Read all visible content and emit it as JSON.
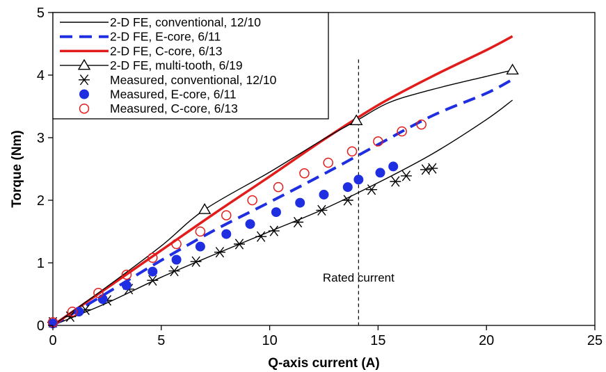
{
  "chart_data": {
    "type": "line",
    "title": "",
    "xlabel": "Q-axis current (A)",
    "ylabel": "Torque (Nm)",
    "xlim": [
      0,
      25
    ],
    "ylim": [
      0,
      5
    ],
    "x_ticks": [
      "0",
      "5",
      "10",
      "15",
      "20",
      "25"
    ],
    "y_ticks": [
      "0",
      "1",
      "2",
      "3",
      "4",
      "5"
    ],
    "grid": false,
    "legend_position": "top-left",
    "annotation": {
      "text": "Rated current",
      "x": 14.1
    },
    "series": [
      {
        "name": "2-D FE, conventional, 12/10",
        "kind": "line",
        "style": "solid",
        "marker": "none",
        "color": "#000000",
        "width": 1.4,
        "x": [
          0,
          2.5,
          5,
          7.5,
          10,
          12.5,
          15,
          17.5,
          20,
          21.2
        ],
        "y": [
          0,
          0.36,
          0.77,
          1.14,
          1.5,
          1.86,
          2.28,
          2.74,
          3.29,
          3.6
        ]
      },
      {
        "name": "2-D FE, E-core, 6/11",
        "kind": "line",
        "style": "dashed",
        "marker": "none",
        "color": "#1f2ee0",
        "width": 4,
        "x": [
          0,
          2.5,
          5,
          7.5,
          10,
          12.5,
          15,
          17.5,
          20,
          21.2
        ],
        "y": [
          0,
          0.52,
          1.04,
          1.53,
          1.97,
          2.42,
          2.89,
          3.35,
          3.71,
          3.93
        ]
      },
      {
        "name": "2-D FE, C-core, 6/13",
        "kind": "line",
        "style": "solid",
        "marker": "none",
        "color": "#e21b1b",
        "width": 3.5,
        "x": [
          0,
          2.5,
          5,
          7.5,
          10,
          12.5,
          15,
          17.5,
          20,
          21.2
        ],
        "y": [
          0,
          0.6,
          1.2,
          1.8,
          2.38,
          2.97,
          3.52,
          3.98,
          4.4,
          4.62
        ]
      },
      {
        "name": "2-D FE, multi-tooth, 6/19",
        "kind": "line",
        "style": "solid",
        "marker": "open-triangle",
        "color": "#000000",
        "width": 1.4,
        "x": [
          0,
          2.5,
          5,
          7,
          10,
          12.5,
          14,
          15.5,
          17.5,
          20,
          21.2
        ],
        "y": [
          0,
          0.62,
          1.27,
          1.85,
          2.45,
          2.98,
          3.27,
          3.56,
          3.77,
          3.98,
          4.08
        ],
        "marker_x": [
          7,
          14,
          21.2
        ],
        "marker_y": [
          1.85,
          3.27,
          4.08
        ]
      },
      {
        "name": "Measured, conventional, 12/10",
        "kind": "scatter",
        "marker": "asterisk",
        "color": "#000000",
        "x": [
          0,
          0.8,
          1.5,
          2.5,
          3.5,
          4.6,
          5.6,
          6.6,
          7.7,
          8.6,
          9.6,
          10.2,
          11.3,
          12.4,
          13.6,
          14.7,
          15.8,
          16.3,
          17.2,
          17.5
        ],
        "y": [
          0.05,
          0.14,
          0.25,
          0.4,
          0.58,
          0.72,
          0.87,
          1.02,
          1.17,
          1.3,
          1.42,
          1.51,
          1.65,
          1.84,
          2.0,
          2.17,
          2.3,
          2.39,
          2.49,
          2.51
        ]
      },
      {
        "name": "Measured, E-core, 6/11",
        "kind": "scatter",
        "marker": "filled-circle",
        "color": "#1f2ee0",
        "x": [
          0,
          1.2,
          2.3,
          3.4,
          4.6,
          5.7,
          6.8,
          8.0,
          9.1,
          10.3,
          11.4,
          12.5,
          13.6,
          14.1,
          15.1,
          15.7
        ],
        "y": [
          0.03,
          0.22,
          0.42,
          0.64,
          0.86,
          1.05,
          1.26,
          1.46,
          1.62,
          1.81,
          1.96,
          2.09,
          2.21,
          2.33,
          2.44,
          2.54
        ]
      },
      {
        "name": "Measured, C-core, 6/13",
        "kind": "scatter",
        "marker": "open-circle",
        "color": "#e21b1b",
        "x": [
          0,
          0.9,
          2.1,
          3.4,
          4.6,
          5.7,
          6.8,
          8.0,
          9.2,
          10.4,
          11.6,
          12.7,
          13.8,
          15.0,
          16.1,
          17.0
        ],
        "y": [
          0.05,
          0.22,
          0.52,
          0.81,
          1.08,
          1.3,
          1.5,
          1.76,
          2.0,
          2.21,
          2.43,
          2.6,
          2.78,
          2.94,
          3.1,
          3.21
        ]
      }
    ]
  }
}
